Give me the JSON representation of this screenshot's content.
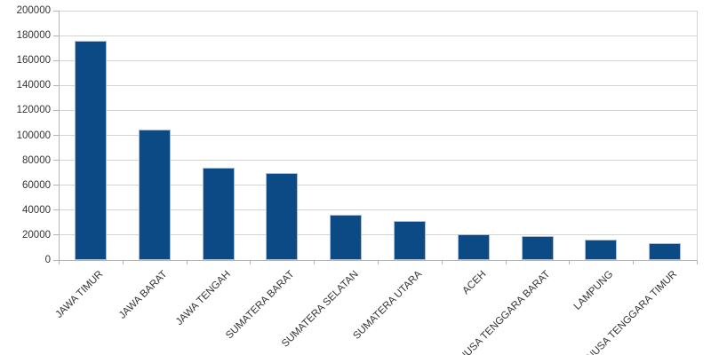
{
  "chart_data": {
    "type": "bar",
    "title": "",
    "xlabel": "",
    "ylabel": "",
    "categories": [
      "JAWA TIMUR",
      "JAWA BARAT",
      "JAWA TENGAH",
      "SUMATERA BARAT",
      "SUMATERA SELATAN",
      "SUMATERA UTARA",
      "ACEH",
      "NUSA TENGGARA BARAT",
      "LAMPUNG",
      "NUSA TENGGARA TIMUR"
    ],
    "values": [
      176000,
      104500,
      74000,
      70000,
      36000,
      31500,
      20500,
      19000,
      16500,
      13500
    ],
    "ylim": [
      0,
      200000
    ],
    "ytick_step": 20000,
    "ytick_labels": [
      "0",
      "20000",
      "40000",
      "60000",
      "80000",
      "100000",
      "120000",
      "140000",
      "160000",
      "180000",
      "200000"
    ],
    "grid": "horizontal",
    "legend": "none",
    "colors": {
      "bar_fill": "#0b4a84",
      "bar_border": "#a9bed6",
      "gridline": "#d4d4d4",
      "axis": "#b4b4b4",
      "tick_label": "#333333",
      "background": "#ffffff"
    }
  }
}
